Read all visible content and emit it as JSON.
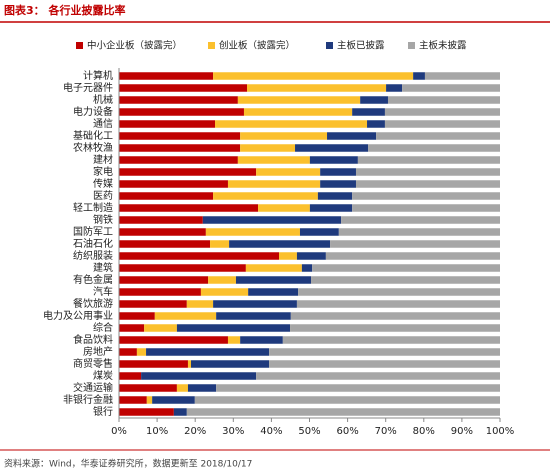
{
  "chart_data": {
    "type": "bar",
    "orientation": "horizontal",
    "stacked": true,
    "title": "图表3：  各行业披露比率",
    "source": "资料来源：Wind，华泰证券研究所，数据更新至 2018/10/17",
    "categories": [
      "计算机",
      "电子元器件",
      "机械",
      "电力设备",
      "通信",
      "基础化工",
      "农林牧渔",
      "建材",
      "家电",
      "传媒",
      "医药",
      "轻工制造",
      "钢铁",
      "国防军工",
      "石油石化",
      "纺织服装",
      "建筑",
      "有色金属",
      "汽车",
      "餐饮旅游",
      "电力及公用事业",
      "综合",
      "食品饮料",
      "房地产",
      "商贸零售",
      "煤炭",
      "交通运输",
      "非银行金融",
      "银行"
    ],
    "series": [
      {
        "name": "中小企业板（披露完）",
        "color": "#c00000",
        "values": [
          24.7,
          33.6,
          31.2,
          32.8,
          25.2,
          31.8,
          31.8,
          31.2,
          36,
          28.6,
          24.7,
          36.5,
          22,
          22.8,
          23.9,
          42,
          33.3,
          23.4,
          21.5,
          17.8,
          9.4,
          6.6,
          28.6,
          4.7,
          18.1,
          5.8,
          15.2,
          7.3,
          14.4
        ]
      },
      {
        "name": "创业板（披露完）",
        "color": "#fbc02d",
        "values": [
          52.5,
          36.5,
          32.1,
          28.4,
          39.9,
          22.8,
          14.4,
          18.9,
          16.8,
          24.2,
          27.5,
          13.6,
          0,
          24.7,
          5,
          4.7,
          14.7,
          7.3,
          12.4,
          6.9,
          16.1,
          8.6,
          3.2,
          2.4,
          0.8,
          0,
          2.9,
          1.4,
          0
        ]
      },
      {
        "name": "主板已披露",
        "color": "#1f3a7d",
        "values": [
          3.1,
          4.2,
          7.3,
          8.6,
          4.7,
          12.9,
          19.2,
          12.6,
          9.4,
          9.4,
          9,
          11.1,
          36.3,
          10.2,
          26.5,
          7.6,
          2.7,
          19.7,
          13.1,
          22,
          19.6,
          29.7,
          11.2,
          32.3,
          20.5,
          30.2,
          7.4,
          11.2,
          3.4
        ]
      },
      {
        "name": "主板未披露",
        "color": "#a6a6a6",
        "values": [
          19.7,
          25.7,
          29.4,
          30.2,
          30.2,
          32.5,
          34.6,
          37.3,
          37.8,
          37.8,
          38.8,
          38.8,
          41.7,
          42.3,
          44.6,
          45.7,
          49.3,
          49.6,
          53,
          53.3,
          54.9,
          55.1,
          57,
          60.6,
          60.6,
          64,
          74.5,
          80.1,
          82.2
        ]
      }
    ],
    "xlim": [
      0,
      100
    ],
    "xticks": [
      {
        "value": 0,
        "label": "0%"
      },
      {
        "value": 10,
        "label": "10%"
      },
      {
        "value": 20,
        "label": "20%"
      },
      {
        "value": 30,
        "label": "30%"
      },
      {
        "value": 40,
        "label": "40%"
      },
      {
        "value": 50,
        "label": "50%"
      },
      {
        "value": 60,
        "label": "60%"
      },
      {
        "value": 70,
        "label": "70%"
      },
      {
        "value": 80,
        "label": "80%"
      },
      {
        "value": 90,
        "label": "90%"
      },
      {
        "value": 100,
        "label": "100%"
      }
    ],
    "grid": false,
    "legend": "top"
  }
}
